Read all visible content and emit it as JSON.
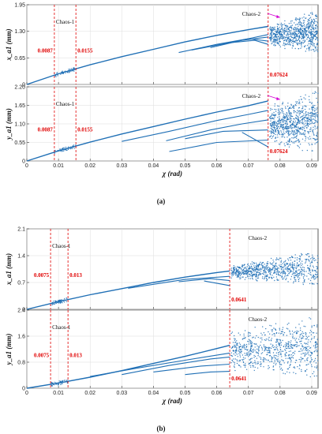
{
  "chart_data": [
    {
      "type": "scatter",
      "group": "a",
      "panel": "top",
      "xlim": [
        0,
        0.092
      ],
      "ylim": [
        0,
        1.95
      ],
      "xticks": [
        0,
        0.01,
        0.02,
        0.03,
        0.04,
        0.05,
        0.06,
        0.07,
        0.08,
        0.09
      ],
      "xtick_labels": [],
      "yticks": [
        "0",
        "0.65",
        "1.30",
        "1.95"
      ],
      "ylabel": "x_a1 (mm)",
      "xlabel": "",
      "vlines": [
        0.0087,
        0.0155,
        0.07624
      ],
      "vline_labels": [
        "0.0087",
        "0.0155",
        "0.07624"
      ],
      "annotations": [
        "Chaos-1",
        "Chaos-2"
      ],
      "chaos1": [
        0.0087,
        0.0155
      ],
      "chaos2_start": 0.07624,
      "main_branch": [
        [
          0,
          0
        ],
        [
          0.01,
          0.26
        ],
        [
          0.02,
          0.48
        ],
        [
          0.03,
          0.68
        ],
        [
          0.04,
          0.86
        ],
        [
          0.05,
          1.04
        ],
        [
          0.06,
          1.2
        ],
        [
          0.07,
          1.34
        ],
        [
          0.0762,
          1.42
        ]
      ],
      "branches": [
        [
          [
            0.048,
            0.78
          ],
          [
            0.06,
            0.98
          ],
          [
            0.07,
            1.12
          ],
          [
            0.0762,
            1.22
          ]
        ],
        [
          [
            0.058,
            0.9
          ],
          [
            0.068,
            1.08
          ],
          [
            0.0762,
            1.16
          ]
        ],
        [
          [
            0.064,
            1.02
          ],
          [
            0.07,
            1.12
          ],
          [
            0.0762,
            1.06
          ]
        ],
        [
          [
            0.052,
            0.84
          ],
          [
            0.064,
            1.02
          ],
          [
            0.072,
            1.08
          ],
          [
            0.0762,
            0.98
          ]
        ]
      ],
      "chaos_band": [
        0.72,
        1.85
      ]
    },
    {
      "type": "scatter",
      "group": "a",
      "panel": "bottom",
      "xlim": [
        0,
        0.092
      ],
      "ylim": [
        0,
        2.2
      ],
      "xticks": [
        0,
        0.01,
        0.02,
        0.03,
        0.04,
        0.05,
        0.06,
        0.07,
        0.08,
        0.09
      ],
      "xtick_labels": [
        "0",
        "0.01",
        "0.02",
        "0.03",
        "0.04",
        "0.05",
        "0.06",
        "0.07",
        "0.08",
        "0.09"
      ],
      "yticks": [
        "0",
        "0.55",
        "1.10",
        "1.65",
        "2.20"
      ],
      "ylabel": "y_a1 (mm)",
      "xlabel": "χ (rad)",
      "vlines": [
        0.0087,
        0.0155,
        0.07624
      ],
      "vline_labels": [
        "0.0087",
        "0.0155",
        "0.07624"
      ],
      "annotations": [
        "Chaos-1",
        "Chaos-2"
      ],
      "chaos1": [
        0.0087,
        0.0155
      ],
      "chaos2_start": 0.07624,
      "main_branch": [
        [
          0,
          0
        ],
        [
          0.01,
          0.3
        ],
        [
          0.02,
          0.56
        ],
        [
          0.03,
          0.8
        ],
        [
          0.04,
          1.02
        ],
        [
          0.05,
          1.24
        ],
        [
          0.06,
          1.45
        ],
        [
          0.07,
          1.64
        ],
        [
          0.0762,
          1.78
        ]
      ],
      "branches": [
        [
          [
            0.03,
            0.58
          ],
          [
            0.045,
            0.88
          ],
          [
            0.06,
            1.2
          ],
          [
            0.07,
            1.38
          ],
          [
            0.0762,
            1.5
          ]
        ],
        [
          [
            0.044,
            0.6
          ],
          [
            0.058,
            0.92
          ],
          [
            0.068,
            1.1
          ],
          [
            0.0762,
            1.22
          ]
        ],
        [
          [
            0.05,
            0.66
          ],
          [
            0.062,
            0.88
          ],
          [
            0.0762,
            0.92
          ]
        ],
        [
          [
            0.045,
            0.28
          ],
          [
            0.06,
            0.55
          ],
          [
            0.0762,
            0.62
          ]
        ],
        [
          [
            0.068,
            0.85
          ],
          [
            0.0762,
            0.42
          ]
        ]
      ],
      "chaos_band": [
        0.2,
        2.15
      ]
    },
    {
      "type": "scatter",
      "group": "b",
      "panel": "top",
      "xlim": [
        0,
        0.092
      ],
      "ylim": [
        0,
        2.1
      ],
      "xticks": [
        0,
        0.01,
        0.02,
        0.03,
        0.04,
        0.05,
        0.06,
        0.07,
        0.08,
        0.09
      ],
      "xtick_labels": [],
      "yticks": [
        "0",
        "0.7",
        "1.4",
        "2.1"
      ],
      "ylabel": "x_a1 (mm)",
      "xlabel": "",
      "vlines": [
        0.0075,
        0.013,
        0.0641
      ],
      "vline_labels": [
        "0.0075",
        "0.013",
        "0.0641"
      ],
      "annotations": [
        "Chaos-1",
        "Chaos-2"
      ],
      "chaos1": [
        0.0075,
        0.013
      ],
      "chaos2_start": 0.0641,
      "main_branch": [
        [
          0,
          0
        ],
        [
          0.01,
          0.2
        ],
        [
          0.02,
          0.38
        ],
        [
          0.03,
          0.54
        ],
        [
          0.04,
          0.7
        ],
        [
          0.05,
          0.84
        ],
        [
          0.06,
          0.96
        ],
        [
          0.0641,
          1.0
        ]
      ],
      "branches": [
        [
          [
            0.032,
            0.55
          ],
          [
            0.05,
            0.78
          ],
          [
            0.0641,
            0.86
          ]
        ],
        [
          [
            0.048,
            0.72
          ],
          [
            0.058,
            0.8
          ],
          [
            0.0641,
            0.75
          ]
        ],
        [
          [
            0.056,
            0.74
          ],
          [
            0.0641,
            0.62
          ]
        ]
      ],
      "chaos_band": [
        0.55,
        1.6
      ]
    },
    {
      "type": "scatter",
      "group": "b",
      "panel": "bottom",
      "xlim": [
        0,
        0.092
      ],
      "ylim": [
        0,
        2.4
      ],
      "xticks": [
        0,
        0.01,
        0.02,
        0.03,
        0.04,
        0.05,
        0.06,
        0.07,
        0.08,
        0.09
      ],
      "xtick_labels": [
        "0",
        "0.01",
        "0.02",
        "0.03",
        "0.04",
        "0.05",
        "0.06",
        "0.07",
        "0.08",
        "0.09"
      ],
      "yticks": [
        "0",
        "0.8",
        "1.6",
        "2.4"
      ],
      "ylabel": "y_a1 (mm)",
      "xlabel": "χ (rad)",
      "vlines": [
        0.0075,
        0.013,
        0.0641
      ],
      "vline_labels": [
        "0.0075",
        "0.013",
        "0.0641"
      ],
      "annotations": [
        "Chaos-1",
        "Chaos-2"
      ],
      "chaos1": [
        0.0075,
        0.013
      ],
      "chaos2_start": 0.0641,
      "main_branch": [
        [
          0,
          0
        ],
        [
          0.01,
          0.16
        ],
        [
          0.02,
          0.34
        ],
        [
          0.03,
          0.54
        ],
        [
          0.04,
          0.76
        ],
        [
          0.05,
          0.98
        ],
        [
          0.06,
          1.22
        ],
        [
          0.0641,
          1.32
        ]
      ],
      "branches": [
        [
          [
            0.02,
            0.36
          ],
          [
            0.035,
            0.62
          ],
          [
            0.05,
            0.86
          ],
          [
            0.0641,
            1.08
          ]
        ],
        [
          [
            0.03,
            0.42
          ],
          [
            0.045,
            0.7
          ],
          [
            0.058,
            0.9
          ],
          [
            0.0641,
            0.96
          ]
        ],
        [
          [
            0.04,
            0.5
          ],
          [
            0.055,
            0.68
          ],
          [
            0.0641,
            0.74
          ]
        ],
        [
          [
            0.05,
            0.42
          ],
          [
            0.058,
            0.5
          ],
          [
            0.0641,
            0.52
          ]
        ]
      ],
      "chaos_band": [
        0.2,
        2.3
      ]
    }
  ],
  "captions": [
    "(a)",
    "(b)"
  ],
  "colors": {
    "data": "#1f6fb5",
    "vline": "#e00000",
    "arrow": "#d400d4"
  }
}
